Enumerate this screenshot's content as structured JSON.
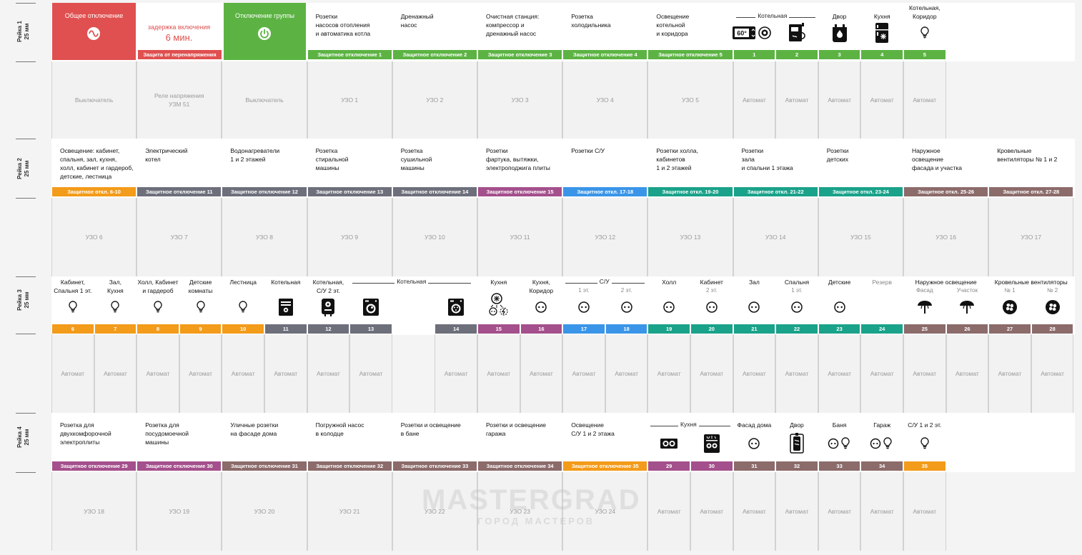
{
  "colors": {
    "red": "#e05050",
    "green": "#5cb343",
    "purple": "#a4508c",
    "gray": "#6d6f7b",
    "brown": "#8c6b6b",
    "orange": "#f39b1a",
    "blue": "#3a95e8",
    "teal": "#1aa28a"
  },
  "rails": [
    {
      "label": "Рейка 1",
      "size": "25 мм"
    },
    {
      "label": "Рейка 2",
      "size": "25 мм"
    },
    {
      "label": "Рейка 3",
      "size": "25 мм"
    },
    {
      "label": "Рейка 4",
      "size": "25 мм"
    }
  ],
  "rail1": {
    "main_off": "Общее отключение",
    "delay_label": "задержка включения",
    "delay_value": "6 мин.",
    "overvoltage": "Защита от перенапряжения",
    "group_off": "Отключение группы",
    "circuits": [
      "Розетки\nнасосов отопления\nи автоматика котла",
      "Дренажный\nнасос",
      "Очистная станция:\nкомпрессор и\nдренажный насос",
      "Розетка\nхолодильника",
      "Освещение\nкотельной\nи коридора"
    ],
    "badges": [
      "Защитное отключение 1",
      "Защитное отключение 2",
      "Защитное отключение 3",
      "Защитное отключение 4",
      "Защитное отключение 5"
    ],
    "boiler_group": "Котельная",
    "small": [
      {
        "title": "",
        "num": "1",
        "icon": "thermostat-icon"
      },
      {
        "title": "",
        "num": "2",
        "icon": "boiler-icon"
      },
      {
        "title": "Двор",
        "num": "3",
        "icon": "water-tank-icon"
      },
      {
        "title": "Кухня",
        "num": "4",
        "icon": "fridge-icon"
      },
      {
        "title": "Котельная,\nКоридор",
        "num": "5",
        "icon": "bulb-icon"
      }
    ],
    "thermo": "60°",
    "devices": [
      "Выключатель",
      "Реле напряжения\nУЗМ 51",
      "Выключатель",
      "УЗО 1",
      "УЗО 2",
      "УЗО 3",
      "УЗО 4",
      "УЗО 5",
      "Автомат",
      "Автомат",
      "Автомат",
      "Автомат",
      "Автомат"
    ]
  },
  "rail2": {
    "circuits": [
      "Освещение: кабинет,\nспальня, зал, кухня,\nхолл, кабинет и гардероб,\nдетские, лестница",
      "Электрический\nкотел",
      "Водонагреватели\n1 и 2 этажей",
      "Розетка\nстиральной\nмашины",
      "Розетка\nсушильной\nмашины",
      "Розетки\nфартука, вытяжки,\nэлектроподжига плиты",
      "Розетки С/У",
      "Розетки холла,\nкабинетов\n1 и 2 этажей",
      "Розетки\nзала\nи спальни 1 этажа",
      "Розетки\nдетских",
      "Наружное\nосвещение\nфасада и участка",
      "Кровельные\nвентиляторы № 1 и 2"
    ],
    "badges": [
      "Защитное откл. 6-10",
      "Защитное отключение 11",
      "Защитное отключение 12",
      "Защитное отключение 13",
      "Защитное отключение 14",
      "Защитное отключение 15",
      "Защитное откл. 17-18",
      "Защитное откл. 19-20",
      "Защитное откл. 21-22",
      "Защитное откл. 23-24",
      "Защитное откл. 25-26",
      "Защитное откл. 27-28"
    ],
    "devices": [
      "УЗО 6",
      "УЗО 7",
      "УЗО 8",
      "УЗО 9",
      "УЗО 10",
      "УЗО 11",
      "УЗО 12",
      "УЗО 13",
      "УЗО 14",
      "УЗО 15",
      "УЗО 16",
      "УЗО 17"
    ]
  },
  "rail3": {
    "groups": {
      "boiler": "Котельная",
      "wc": "С/У",
      "outdoor": "Наружное освещение",
      "fans": "Кровельные вентиляторы"
    },
    "slots": [
      {
        "title": "Кабинет,\nСпальня 1 эт.",
        "sub": "",
        "num": "6",
        "icon": "bulb-icon"
      },
      {
        "title": "Зал,\nКухня",
        "sub": "",
        "num": "7",
        "icon": "bulb-icon"
      },
      {
        "title": "Холл, Кабинет\nи гардероб",
        "sub": "",
        "num": "8",
        "icon": "bulb-icon"
      },
      {
        "title": "Детские\nкомнаты",
        "sub": "",
        "num": "9",
        "icon": "bulb-icon"
      },
      {
        "title": "Лестница",
        "sub": "",
        "num": "10",
        "icon": "bulb-icon"
      },
      {
        "title": "Котельная",
        "sub": "",
        "num": "11",
        "icon": "electric-boiler-icon"
      },
      {
        "title": "Котельная,\nС/У 2 эт.",
        "sub": "",
        "num": "12",
        "icon": "water-heater-icon"
      },
      {
        "title": "",
        "sub": "",
        "num": "13",
        "icon": "washer-icon"
      },
      {
        "title": "",
        "sub": "",
        "num": "14",
        "icon": "dryer-icon"
      },
      {
        "title": "Кухня",
        "sub": "",
        "num": "15",
        "icon": "hood-icon"
      },
      {
        "title": "Кухня,\nКоридор",
        "sub": "",
        "num": "16",
        "icon": "socket-icon"
      },
      {
        "title": "",
        "sub": "1 эт.",
        "num": "17",
        "icon": "socket-icon"
      },
      {
        "title": "",
        "sub": "2 эт.",
        "num": "18",
        "icon": "socket-icon"
      },
      {
        "title": "Холл",
        "sub": "",
        "num": "19",
        "icon": "socket-icon"
      },
      {
        "title": "Кабинет",
        "sub": "2 эт.",
        "num": "20",
        "icon": "socket-icon"
      },
      {
        "title": "Зал",
        "sub": "",
        "num": "21",
        "icon": "socket-icon"
      },
      {
        "title": "Спальня",
        "sub": "1 эт.",
        "num": "22",
        "icon": "socket-icon"
      },
      {
        "title": "Детские",
        "sub": "",
        "num": "23",
        "icon": "socket-icon"
      },
      {
        "title": "Резерв",
        "sub": "",
        "num": "24",
        "icon": ""
      },
      {
        "title": "",
        "sub": "Фасад",
        "num": "25",
        "icon": "outdoor-lamp-icon"
      },
      {
        "title": "",
        "sub": "Участок",
        "num": "26",
        "icon": "outdoor-lamp-icon"
      },
      {
        "title": "",
        "sub": "№ 1",
        "num": "27",
        "icon": "fan-icon"
      },
      {
        "title": "",
        "sub": "№ 2",
        "num": "28",
        "icon": "fan-icon"
      }
    ],
    "device": "Автомат"
  },
  "rail4": {
    "circuits": [
      "Розетка для\nдвухкомфорочной\nэлектроплиты",
      "Розетка для\nпосудомоечной\nмашины",
      "Уличные розетки\nна фасаде дома",
      "Погружной насос\nв колодце",
      "Розетки и освещение\nв бане",
      "Розетки и освещение\nгаража",
      "Освещение\nС/У 1 и 2 этажа"
    ],
    "badges": [
      "Защитное отключение 29",
      "Защитное отключение 30",
      "Защитное отключение 31",
      "Защитное отключение 32",
      "Защитное отключение 33",
      "Защитное отключение 34",
      "Защитное отключение 35"
    ],
    "kitchen_group": "Кухня",
    "small": [
      {
        "title": "",
        "num": "29",
        "icon": "hob-icon"
      },
      {
        "title": "",
        "num": "30",
        "icon": "dishwasher-icon"
      },
      {
        "title": "Фасад дома",
        "num": "31",
        "icon": "socket-icon"
      },
      {
        "title": "Двор",
        "num": "32",
        "icon": "pump-icon"
      },
      {
        "title": "Баня",
        "num": "33",
        "icon": "socket-bulb-icon"
      },
      {
        "title": "Гараж",
        "num": "34",
        "icon": "socket-bulb-icon"
      },
      {
        "title": "С/У 1 и 2 эт.",
        "num": "35",
        "icon": "bulb-icon"
      }
    ],
    "devices": [
      "УЗО 18",
      "УЗО 19",
      "УЗО 20",
      "УЗО 21",
      "УЗО 22",
      "УЗО 23",
      "УЗО 24",
      "Автомат",
      "Автомат",
      "Автомат",
      "Автомат",
      "Автомат",
      "Автомат"
    ]
  },
  "watermark": {
    "brand": "MASTERGRAD",
    "tagline": "ГОРОД МАСТЕРОВ"
  }
}
